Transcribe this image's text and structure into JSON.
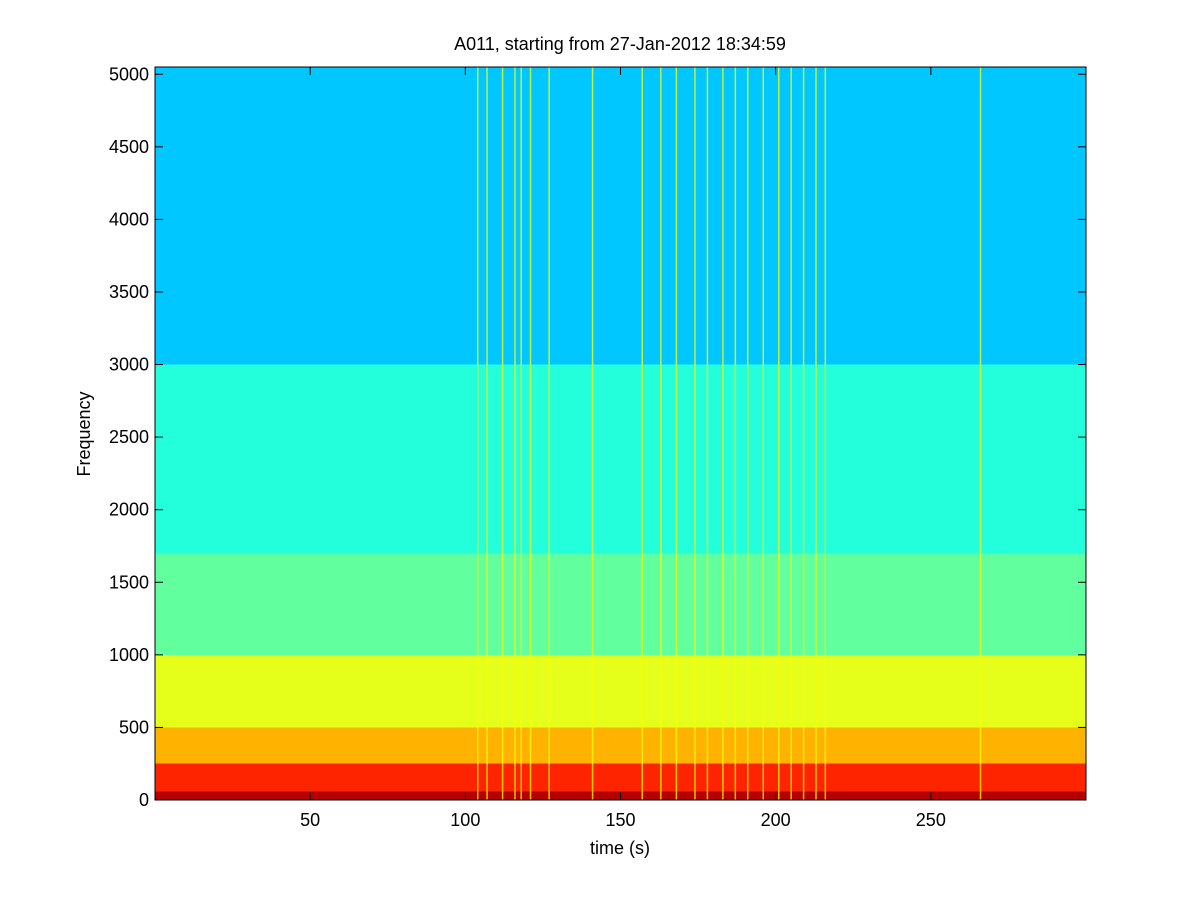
{
  "chart_data": {
    "type": "heatmap",
    "title": "A011, starting from 27-Jan-2012 18:34:59",
    "xlabel": "time (s)",
    "ylabel": "Frequency",
    "xlim": [
      0,
      300
    ],
    "ylim": [
      0,
      5050
    ],
    "xticks": [
      50,
      100,
      150,
      200,
      250
    ],
    "yticks": [
      0,
      500,
      1000,
      1500,
      2000,
      2500,
      3000,
      3500,
      4000,
      4500,
      5000
    ],
    "colormap": "jet",
    "grid": false,
    "legend": "none",
    "band_levels": [
      {
        "freq_max": 60,
        "level": 0.95
      },
      {
        "freq_max": 250,
        "level": 0.84
      },
      {
        "freq_max": 500,
        "level": 0.7
      },
      {
        "freq_max": 1000,
        "level": 0.6
      },
      {
        "freq_max": 1700,
        "level": 0.47
      },
      {
        "freq_max": 3000,
        "level": 0.41
      },
      {
        "freq_max": 5050,
        "level": 0.32
      }
    ],
    "broadband_events_s": [
      104,
      107,
      112,
      116,
      118,
      121,
      127,
      141,
      157,
      163,
      168,
      174,
      178,
      183,
      187,
      191,
      196,
      201,
      205,
      209,
      213,
      216,
      266
    ]
  }
}
